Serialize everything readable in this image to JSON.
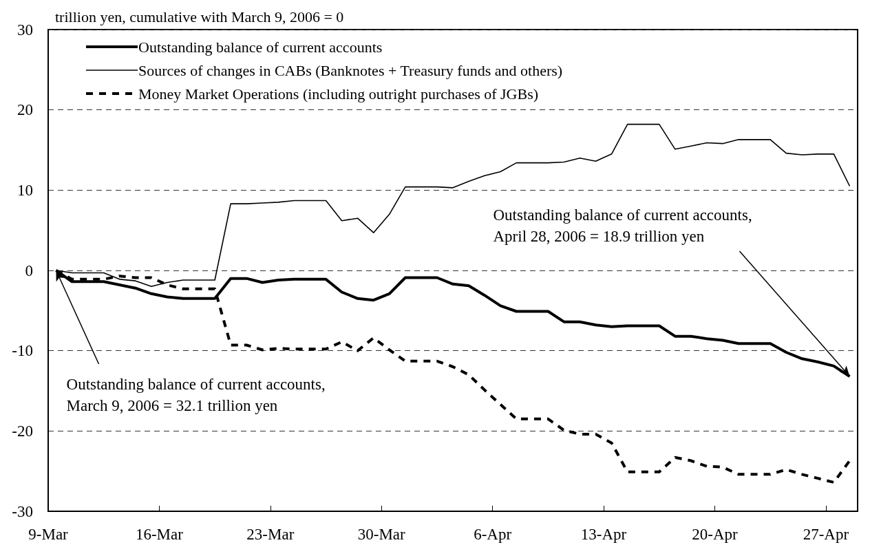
{
  "chart_data": {
    "type": "line",
    "ylabel": "trillion yen, cumulative with March 9, 2006 = 0",
    "x": [
      "2006-03-09T12:00",
      "2006-03-10T12:00",
      "2006-03-11T12:00",
      "2006-03-12T12:00",
      "2006-03-13T12:00",
      "2006-03-14T12:00",
      "2006-03-15T12:00",
      "2006-03-16T12:00",
      "2006-03-17T12:00",
      "2006-03-18T12:00",
      "2006-03-19T12:00",
      "2006-03-20T12:00",
      "2006-03-21T12:00",
      "2006-03-22T12:00",
      "2006-03-23T12:00",
      "2006-03-24T12:00",
      "2006-03-25T12:00",
      "2006-03-26T12:00",
      "2006-03-27T12:00",
      "2006-03-28T12:00",
      "2006-03-29T12:00",
      "2006-03-30T12:00",
      "2006-03-31T12:00",
      "2006-04-01T12:00",
      "2006-04-02T12:00",
      "2006-04-03T12:00",
      "2006-04-04T12:00",
      "2006-04-05T12:00",
      "2006-04-06T12:00",
      "2006-04-07T12:00",
      "2006-04-08T12:00",
      "2006-04-09T12:00",
      "2006-04-10T12:00",
      "2006-04-11T12:00",
      "2006-04-12T12:00",
      "2006-04-13T12:00",
      "2006-04-14T12:00",
      "2006-04-15T12:00",
      "2006-04-16T12:00",
      "2006-04-17T12:00",
      "2006-04-18T12:00",
      "2006-04-19T12:00",
      "2006-04-20T12:00",
      "2006-04-21T12:00",
      "2006-04-22T12:00",
      "2006-04-23T12:00",
      "2006-04-24T12:00",
      "2006-04-25T12:00",
      "2006-04-26T12:00",
      "2006-04-27T12:00",
      "2006-04-28T12:00"
    ],
    "series": [
      {
        "name": "Outstanding balance of current accounts",
        "color": "#000000",
        "line_style": "solid",
        "values": [
          0,
          -1.4,
          -1.4,
          -1.4,
          -1.8,
          -2.2,
          -2.9,
          -3.3,
          -3.5,
          -3.5,
          -3.5,
          -1.0,
          -1.0,
          -1.5,
          -1.2,
          -1.1,
          -1.1,
          -1.1,
          -2.7,
          -3.5,
          -3.7,
          -2.9,
          -0.9,
          -0.9,
          -0.9,
          -1.7,
          -1.9,
          -3.1,
          -4.4,
          -5.1,
          -5.1,
          -5.1,
          -6.4,
          -6.4,
          -6.8,
          -7.0,
          -6.9,
          -6.9,
          -6.9,
          -8.2,
          -8.2,
          -8.5,
          -8.7,
          -9.1,
          -9.1,
          -9.1,
          -10.2,
          -11.0,
          -11.4,
          -11.9,
          -13.2
        ]
      },
      {
        "name": "Sources of changes in CABs (Banknotes + Treasury funds and others)",
        "color": "#000000",
        "line_style": "solid",
        "values": [
          0,
          -0.3,
          -0.3,
          -0.3,
          -1.1,
          -1.3,
          -2.0,
          -1.5,
          -1.2,
          -1.2,
          -1.2,
          8.3,
          8.3,
          8.4,
          8.5,
          8.7,
          8.7,
          8.7,
          6.2,
          6.5,
          4.7,
          7.0,
          10.4,
          10.4,
          10.4,
          10.3,
          11.1,
          11.8,
          12.3,
          13.4,
          13.4,
          13.4,
          13.5,
          14.0,
          13.6,
          14.5,
          18.2,
          18.2,
          18.2,
          15.1,
          15.5,
          15.9,
          15.8,
          16.3,
          16.3,
          16.3,
          14.6,
          14.4,
          14.5,
          14.5,
          10.5
        ]
      },
      {
        "name": "Money Market Operations (including outright purchases of JGBs)",
        "color": "#000000",
        "line_style": "dashed",
        "values": [
          0,
          -1.1,
          -1.1,
          -1.1,
          -0.7,
          -0.9,
          -0.9,
          -1.8,
          -2.3,
          -2.3,
          -2.3,
          -9.3,
          -9.3,
          -9.9,
          -9.7,
          -9.8,
          -9.8,
          -9.8,
          -8.9,
          -10.0,
          -8.4,
          -9.9,
          -11.3,
          -11.3,
          -11.3,
          -12.0,
          -13.0,
          -14.9,
          -16.7,
          -18.5,
          -18.5,
          -18.5,
          -19.9,
          -20.4,
          -20.4,
          -21.5,
          -25.1,
          -25.1,
          -25.1,
          -23.3,
          -23.7,
          -24.4,
          -24.5,
          -25.4,
          -25.4,
          -25.4,
          -24.8,
          -25.4,
          -25.9,
          -26.4,
          -23.7
        ]
      }
    ],
    "xlim": [
      "2006-03-09",
      "2006-04-29"
    ],
    "xticks": [
      {
        "value": "2006-03-09",
        "label": "9-Mar"
      },
      {
        "value": "2006-03-16",
        "label": "16-Mar"
      },
      {
        "value": "2006-03-23",
        "label": "23-Mar"
      },
      {
        "value": "2006-03-30",
        "label": "30-Mar"
      },
      {
        "value": "2006-04-06",
        "label": "6-Apr"
      },
      {
        "value": "2006-04-13",
        "label": "13-Apr"
      },
      {
        "value": "2006-04-20",
        "label": "20-Apr"
      },
      {
        "value": "2006-04-27",
        "label": "27-Apr"
      }
    ],
    "ylim": [
      -30,
      30
    ],
    "yticks": [
      -30,
      -20,
      -10,
      0,
      10,
      20,
      30
    ],
    "grid": "y",
    "legend": "top left",
    "marker": "none",
    "annotations": [
      {
        "text": "Outstanding balance of current accounts, March 9, 2006 = 32.1 trillion yen",
        "x": "2006-03-09T12:00",
        "y": 0
      },
      {
        "text": "Outstanding balance of current accounts, April 28, 2006 = 18.9 trillion yen",
        "x": "2006-04-28T12:00",
        "y": -13.2
      }
    ]
  }
}
